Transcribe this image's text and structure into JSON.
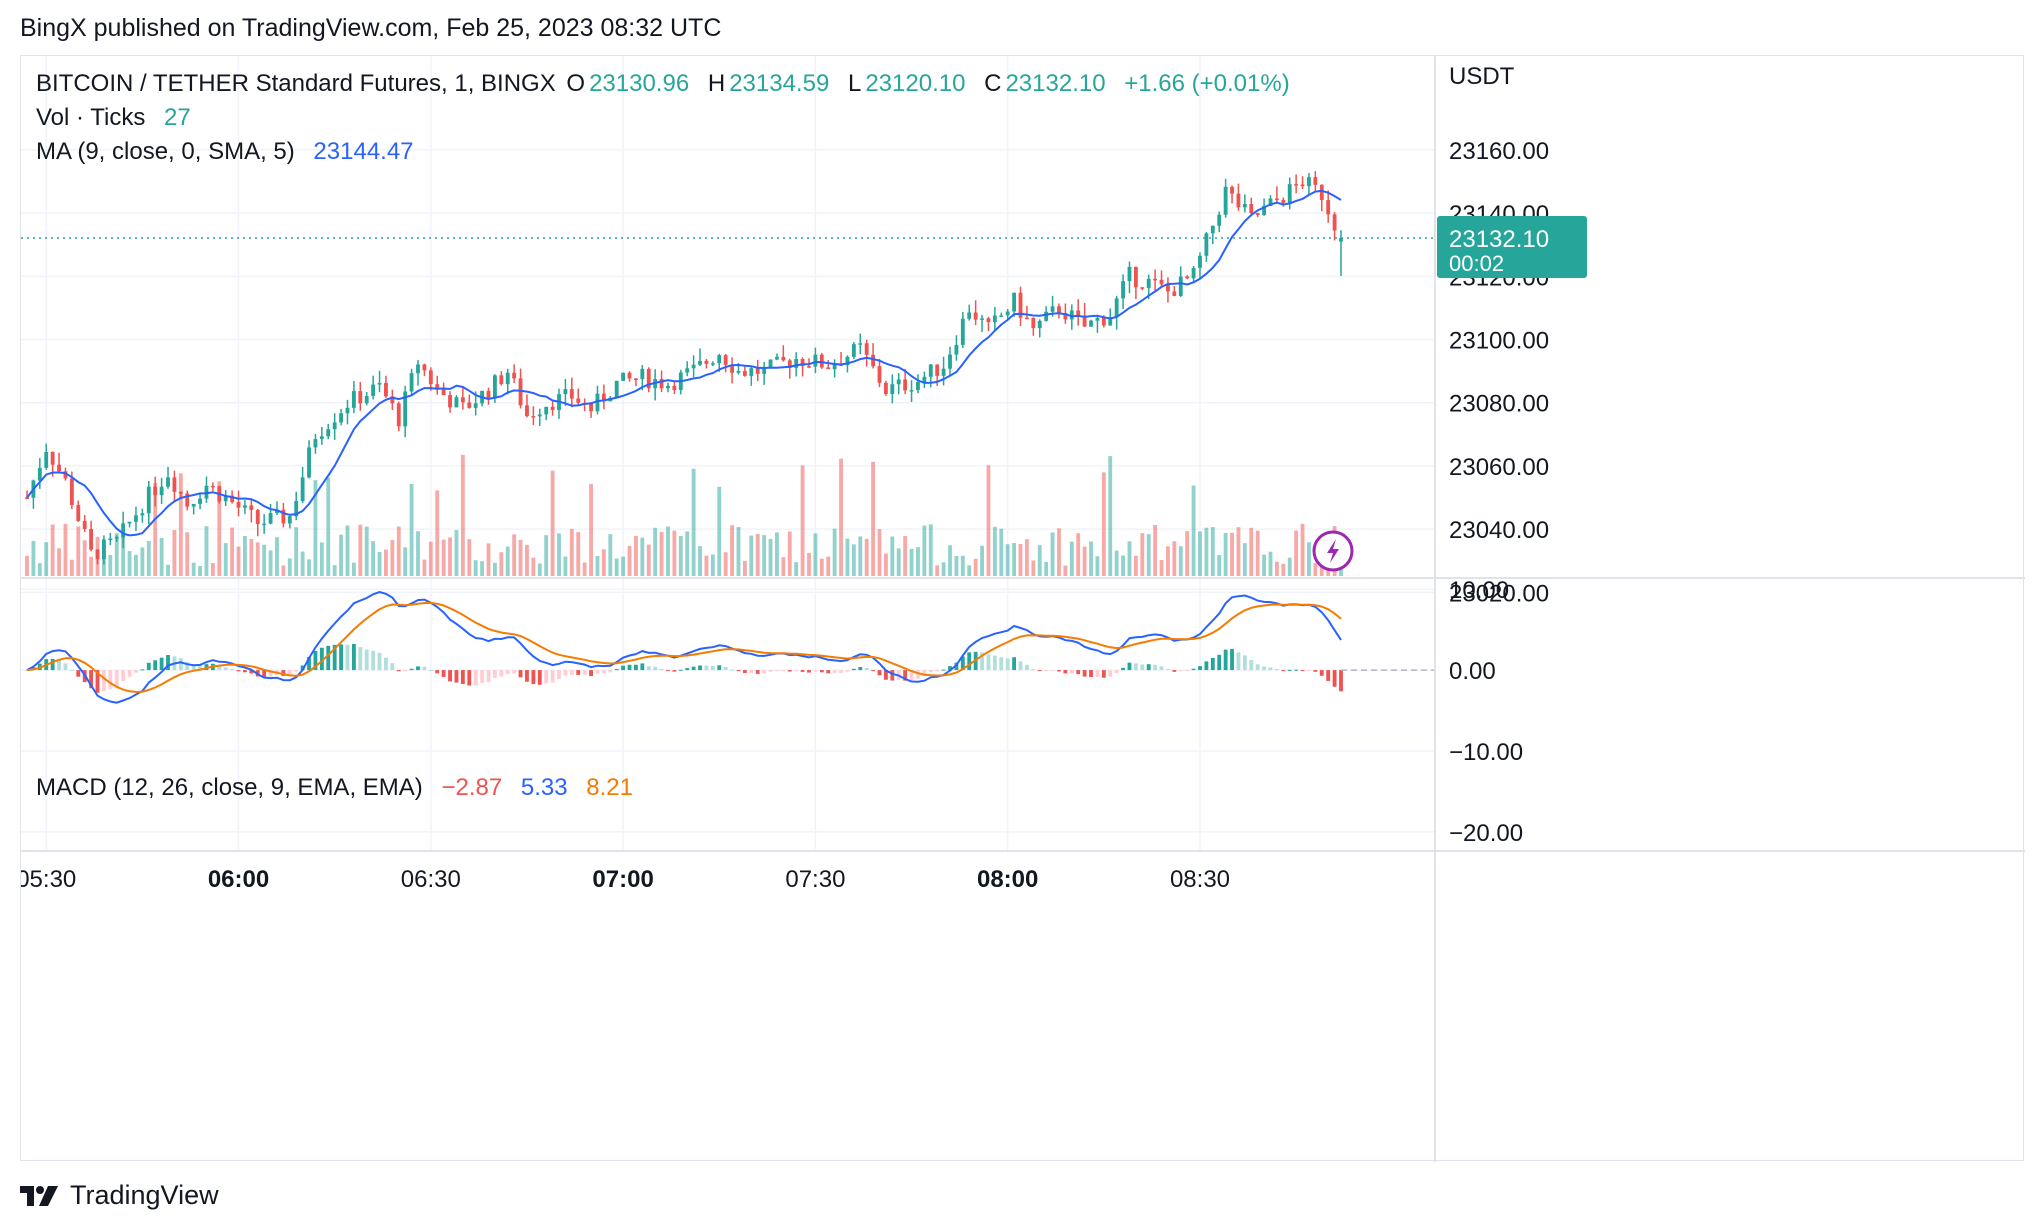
{
  "header": {
    "published": "BingX published on TradingView.com, Feb 25, 2023 08:32 UTC"
  },
  "legend": {
    "symbol": "BITCOIN / TETHER Standard Futures, 1, BINGX",
    "o_label": "O",
    "o_value": "23130.96",
    "h_label": "H",
    "h_value": "23134.59",
    "l_label": "L",
    "l_value": "23120.10",
    "c_label": "C",
    "c_value": "23132.10",
    "change": "+1.66 (+0.01%)",
    "vol_label": "Vol · Ticks",
    "vol_value": "27",
    "ma_label": "MA (9, close, 0, SMA, 5)",
    "ma_value": "23144.47",
    "macd_label": "MACD (12, 26, close, 9, EMA, EMA)",
    "macd_hist": "−2.87",
    "macd_value": "5.33",
    "macd_signal": "8.21"
  },
  "price_axis": {
    "unit": "USDT",
    "last_price": "23132.10",
    "countdown": "00:02"
  },
  "footer": {
    "brand": "TradingView"
  },
  "colors": {
    "up": "#26a69a",
    "down": "#ef5350",
    "ma": "#2962ff",
    "signal": "#f57c00",
    "grid": "#f0f3fa"
  },
  "chart_data": {
    "type": "candlestick",
    "x_ticks": [
      "05:30",
      "06:00",
      "06:30",
      "07:00",
      "07:30",
      "08:00",
      "08:30"
    ],
    "x_ticks_bold": [
      "06:00",
      "07:00",
      "08:00"
    ],
    "price_ticks": [
      "23160.00",
      "23140.00",
      "23120.00",
      "23100.00",
      "23080.00",
      "23060.00",
      "23040.00",
      "23020.00"
    ],
    "price_ylim": [
      23010,
      23165
    ],
    "macd_ticks": [
      "10.00",
      "0.00",
      "−10.00",
      "−20.00"
    ],
    "macd_ylim": [
      -21,
      12
    ],
    "price_anchors": [
      {
        "t": 0,
        "p": 23050
      },
      {
        "t": 3,
        "p": 23066
      },
      {
        "t": 6,
        "p": 23055
      },
      {
        "t": 10,
        "p": 23032
      },
      {
        "t": 14,
        "p": 23036
      },
      {
        "t": 18,
        "p": 23048
      },
      {
        "t": 22,
        "p": 23058
      },
      {
        "t": 25,
        "p": 23048
      },
      {
        "t": 28,
        "p": 23054
      },
      {
        "t": 31,
        "p": 23050
      },
      {
        "t": 36,
        "p": 23042
      },
      {
        "t": 41,
        "p": 23044
      },
      {
        "t": 45,
        "p": 23070
      },
      {
        "t": 50,
        "p": 23080
      },
      {
        "t": 55,
        "p": 23085
      },
      {
        "t": 58,
        "p": 23075
      },
      {
        "t": 61,
        "p": 23093
      },
      {
        "t": 64,
        "p": 23084
      },
      {
        "t": 68,
        "p": 23078
      },
      {
        "t": 72,
        "p": 23084
      },
      {
        "t": 75,
        "p": 23090
      },
      {
        "t": 78,
        "p": 23076
      },
      {
        "t": 81,
        "p": 23080
      },
      {
        "t": 85,
        "p": 23082
      },
      {
        "t": 88,
        "p": 23078
      },
      {
        "t": 92,
        "p": 23086
      },
      {
        "t": 96,
        "p": 23088
      },
      {
        "t": 100,
        "p": 23086
      },
      {
        "t": 104,
        "p": 23090
      },
      {
        "t": 108,
        "p": 23096
      },
      {
        "t": 111,
        "p": 23090
      },
      {
        "t": 115,
        "p": 23090
      },
      {
        "t": 120,
        "p": 23094
      },
      {
        "t": 125,
        "p": 23092
      },
      {
        "t": 130,
        "p": 23097
      },
      {
        "t": 134,
        "p": 23084
      },
      {
        "t": 139,
        "p": 23087
      },
      {
        "t": 143,
        "p": 23092
      },
      {
        "t": 147,
        "p": 23110
      },
      {
        "t": 150,
        "p": 23103
      },
      {
        "t": 154,
        "p": 23112
      },
      {
        "t": 157,
        "p": 23103
      },
      {
        "t": 161,
        "p": 23110
      },
      {
        "t": 165,
        "p": 23104
      },
      {
        "t": 169,
        "p": 23108
      },
      {
        "t": 172,
        "p": 23120
      },
      {
        "t": 175,
        "p": 23118
      },
      {
        "t": 178,
        "p": 23115
      },
      {
        "t": 182,
        "p": 23120
      },
      {
        "t": 187,
        "p": 23147
      },
      {
        "t": 191,
        "p": 23138
      },
      {
        "t": 195,
        "p": 23144
      },
      {
        "t": 199,
        "p": 23150
      },
      {
        "t": 202,
        "p": 23146
      },
      {
        "t": 205,
        "p": 23132
      }
    ],
    "t_min": 0,
    "t_max": 205
  }
}
